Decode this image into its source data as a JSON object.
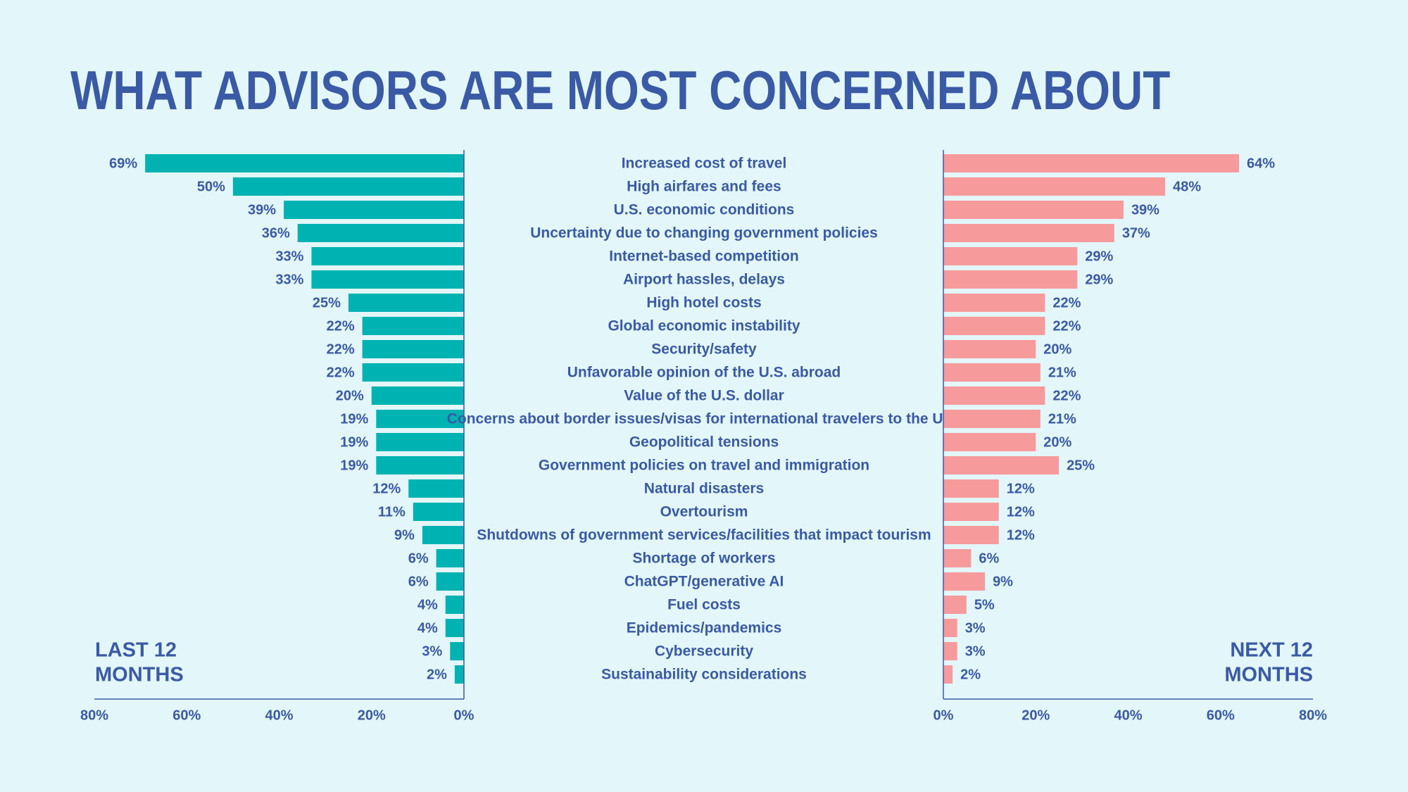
{
  "title": "WHAT ADVISORS ARE MOST CONCERNED ABOUT",
  "colors": {
    "left": "#00b3b3",
    "right": "#f79a9c",
    "text": "#3a5aa6",
    "axis": "#3a5aa6",
    "background": "#e3f6fa"
  },
  "chart_data": {
    "type": "bar",
    "orientation": "horizontal-diverging",
    "categories": [
      "Increased cost of travel",
      "High airfares and fees",
      "U.S. economic conditions",
      "Uncertainty due to changing government policies",
      "Internet-based competition",
      "Airport hassles, delays",
      "High hotel costs",
      "Global economic instability",
      "Security/safety",
      "Unfavorable opinion of the U.S. abroad",
      "Value of the U.S. dollar",
      "Concerns about border issues/visas for international travelers to the U.S.",
      "Geopolitical tensions",
      "Government policies on travel and immigration",
      "Natural disasters",
      "Overtourism",
      "Shutdowns of government services/facilities that impact tourism",
      "Shortage of workers",
      "ChatGPT/generative AI",
      "Fuel costs",
      "Epidemics/pandemics",
      "Cybersecurity",
      "Sustainability considerations"
    ],
    "series": [
      {
        "name": "LAST 12 MONTHS",
        "values": [
          69,
          50,
          39,
          36,
          33,
          33,
          25,
          22,
          22,
          22,
          20,
          19,
          19,
          19,
          12,
          11,
          9,
          6,
          6,
          4,
          4,
          3,
          2
        ]
      },
      {
        "name": "NEXT 12 MONTHS",
        "values": [
          64,
          48,
          39,
          37,
          29,
          29,
          22,
          22,
          20,
          21,
          22,
          21,
          20,
          25,
          12,
          12,
          12,
          6,
          9,
          5,
          3,
          3,
          2
        ]
      }
    ],
    "xlim": [
      0,
      80
    ],
    "ticks": [
      "80%",
      "60%",
      "40%",
      "20%",
      "0%"
    ],
    "ticks_right": [
      "0%",
      "20%",
      "40%",
      "60%",
      "80%"
    ],
    "value_suffix": "%",
    "legend": {
      "left_line1": "LAST 12",
      "left_line2": "MONTHS",
      "right_line1": "NEXT 12",
      "right_line2": "MONTHS"
    },
    "grid": false
  }
}
